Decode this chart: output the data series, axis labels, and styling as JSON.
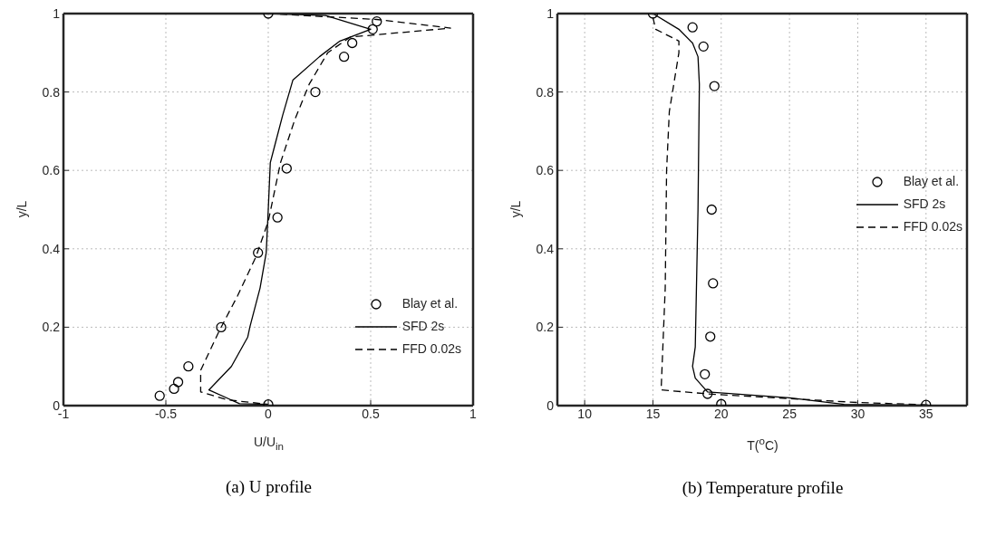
{
  "chart_data": [
    {
      "type": "line",
      "title": "(a) U profile",
      "xlabel": "U/U$_{in}$",
      "ylabel": "y/L",
      "xlim": [
        -1,
        1
      ],
      "xticks": [
        -1,
        -0.5,
        0,
        0.5,
        1
      ],
      "ylim": [
        0,
        1
      ],
      "yticks": [
        0,
        0.2,
        0.4,
        0.6,
        0.8,
        1
      ],
      "grid": true,
      "legend": "bottom right",
      "series": [
        {
          "name": "Blay et al.",
          "type": "scatter",
          "marker": "circle",
          "color": "#000000",
          "x": [
            0,
            0.53,
            0.51,
            0.41,
            0.37,
            0.23,
            0.09,
            0.045,
            -0.05,
            -0.23,
            -0.39,
            -0.44,
            -0.46,
            -0.53,
            0
          ],
          "values": [
            1,
            0.98,
            0.96,
            0.925,
            0.89,
            0.8,
            0.605,
            0.48,
            0.39,
            0.2,
            0.1,
            0.06,
            0.043,
            0.025,
            0.003
          ]
        },
        {
          "name": "SFD 2s",
          "type": "line",
          "line_style": "solid",
          "color": "#000000",
          "x": [
            0,
            0.28,
            0.5,
            0.35,
            0.25,
            0.12,
            0.07,
            0.03,
            0.01,
            0,
            -0.01,
            -0.04,
            -0.09,
            -0.1,
            -0.18,
            -0.29,
            -0.14,
            0
          ],
          "values": [
            1,
            0.995,
            0.96,
            0.93,
            0.89,
            0.83,
            0.74,
            0.66,
            0.62,
            0.5,
            0.39,
            0.3,
            0.2,
            0.175,
            0.1,
            0.04,
            0.005,
            0.003
          ]
        },
        {
          "name": "FFD 0.02s",
          "type": "line",
          "line_style": "dashed",
          "color": "#000000",
          "x": [
            0,
            0.53,
            0.89,
            0.4,
            0.29,
            0.2,
            0.13,
            0.06,
            0,
            -0.06,
            -0.15,
            -0.24,
            -0.33,
            -0.33,
            -0.2,
            0
          ],
          "values": [
            1,
            0.985,
            0.963,
            0.94,
            0.9,
            0.82,
            0.73,
            0.62,
            0.47,
            0.38,
            0.28,
            0.19,
            0.09,
            0.035,
            0.015,
            0.003
          ]
        }
      ]
    },
    {
      "type": "line",
      "title": "(b) Temperature profile",
      "xlabel": "T($^{o}$C)",
      "ylabel": "y/L",
      "xlim": [
        8,
        38
      ],
      "xticks": [
        10,
        15,
        20,
        25,
        30,
        35
      ],
      "ylim": [
        0,
        1
      ],
      "yticks": [
        0,
        0.2,
        0.4,
        0.6,
        0.8,
        1
      ],
      "grid": true,
      "legend": "right",
      "series": [
        {
          "name": "Blay et al.",
          "type": "scatter",
          "marker": "circle",
          "color": "#000000",
          "x": [
            15,
            17.9,
            18.7,
            19.5,
            19.3,
            19.4,
            19.2,
            18.8,
            19,
            20,
            35
          ],
          "values": [
            1,
            0.965,
            0.916,
            0.815,
            0.5,
            0.312,
            0.176,
            0.08,
            0.03,
            0.004,
            0.002
          ]
        },
        {
          "name": "SFD 2s",
          "type": "line",
          "line_style": "solid",
          "color": "#000000",
          "x": [
            15,
            16.9,
            17.9,
            18.3,
            18.4,
            18.3,
            18.1,
            17.9,
            18.1,
            19,
            25,
            29,
            35.3
          ],
          "values": [
            1,
            0.96,
            0.925,
            0.89,
            0.82,
            0.5,
            0.15,
            0.1,
            0.07,
            0.035,
            0.02,
            0.003,
            0.001
          ]
        },
        {
          "name": "FFD 0.02s",
          "type": "line",
          "line_style": "dashed",
          "color": "#000000",
          "x": [
            15,
            15.2,
            16.9,
            16.9,
            16.2,
            16,
            15.9,
            15.6,
            19,
            30,
            35.3
          ],
          "values": [
            0.99,
            0.96,
            0.93,
            0.9,
            0.75,
            0.6,
            0.3,
            0.04,
            0.03,
            0.008,
            0.002
          ]
        }
      ]
    }
  ]
}
